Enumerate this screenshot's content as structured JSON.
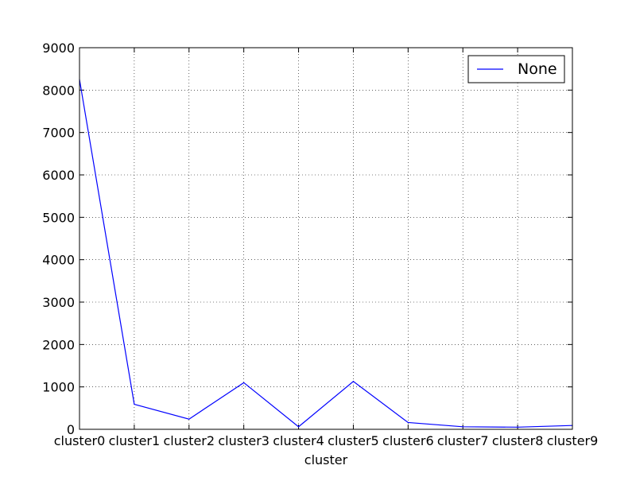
{
  "chart_data": {
    "type": "line",
    "categories": [
      "cluster0",
      "cluster1",
      "cluster2",
      "cluster3",
      "cluster4",
      "cluster5",
      "cluster6",
      "cluster7",
      "cluster8",
      "cluster9"
    ],
    "series": [
      {
        "name": "None",
        "color": "#0000ff",
        "values": [
          8250,
          590,
          240,
          1100,
          60,
          1130,
          160,
          60,
          50,
          90
        ]
      }
    ],
    "xlabel": "cluster",
    "ylabel": "",
    "ylim": [
      0,
      9000
    ],
    "yticks": [
      0,
      1000,
      2000,
      3000,
      4000,
      5000,
      6000,
      7000,
      8000,
      9000
    ],
    "grid": true,
    "legend_position": "top-right"
  }
}
